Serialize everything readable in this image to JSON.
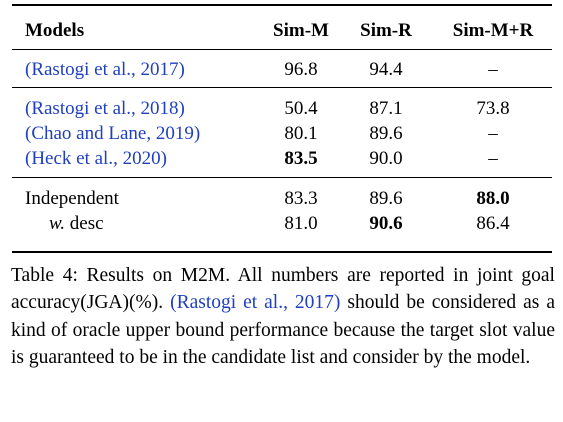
{
  "table": {
    "headers": [
      "Models",
      "Sim-M",
      "Sim-R",
      "Sim-M+R"
    ],
    "groups": [
      {
        "rows": [
          {
            "model": "(Rastogi et al., 2017)",
            "sim_m": "96.8",
            "sim_r": "94.4",
            "sim_mr": "–"
          }
        ]
      },
      {
        "rows": [
          {
            "model": "(Rastogi et al., 2018)",
            "sim_m": "50.4",
            "sim_r": "87.1",
            "sim_mr": "73.8"
          },
          {
            "model": "(Chao and Lane, 2019)",
            "sim_m": "80.1",
            "sim_r": "89.6",
            "sim_mr": "–"
          },
          {
            "model": "(Heck et al., 2020)",
            "sim_m": "83.5",
            "sim_r": "90.0",
            "sim_mr": "–"
          }
        ]
      },
      {
        "rows": [
          {
            "model": "Independent",
            "sim_m": "83.3",
            "sim_r": "89.6",
            "sim_mr": "88.0"
          },
          {
            "model_prefix": "w.",
            "model_suffix": " desc",
            "sim_m": "81.0",
            "sim_r": "90.6",
            "sim_mr": "86.4"
          }
        ]
      }
    ]
  },
  "caption": {
    "label": "Table 4:",
    "text_part1": " Results on M2M. All numbers are reported in joint goal accuracy(JGA)(%). ",
    "citation": "(Rastogi et al., 2017)",
    "text_part2": " should be considered as a kind of oracle upper bound performance because the target slot value is guaranteed to be in the candidate list and consider by the model."
  },
  "colors": {
    "citation": "#1f3fbf",
    "text": "#000000"
  }
}
